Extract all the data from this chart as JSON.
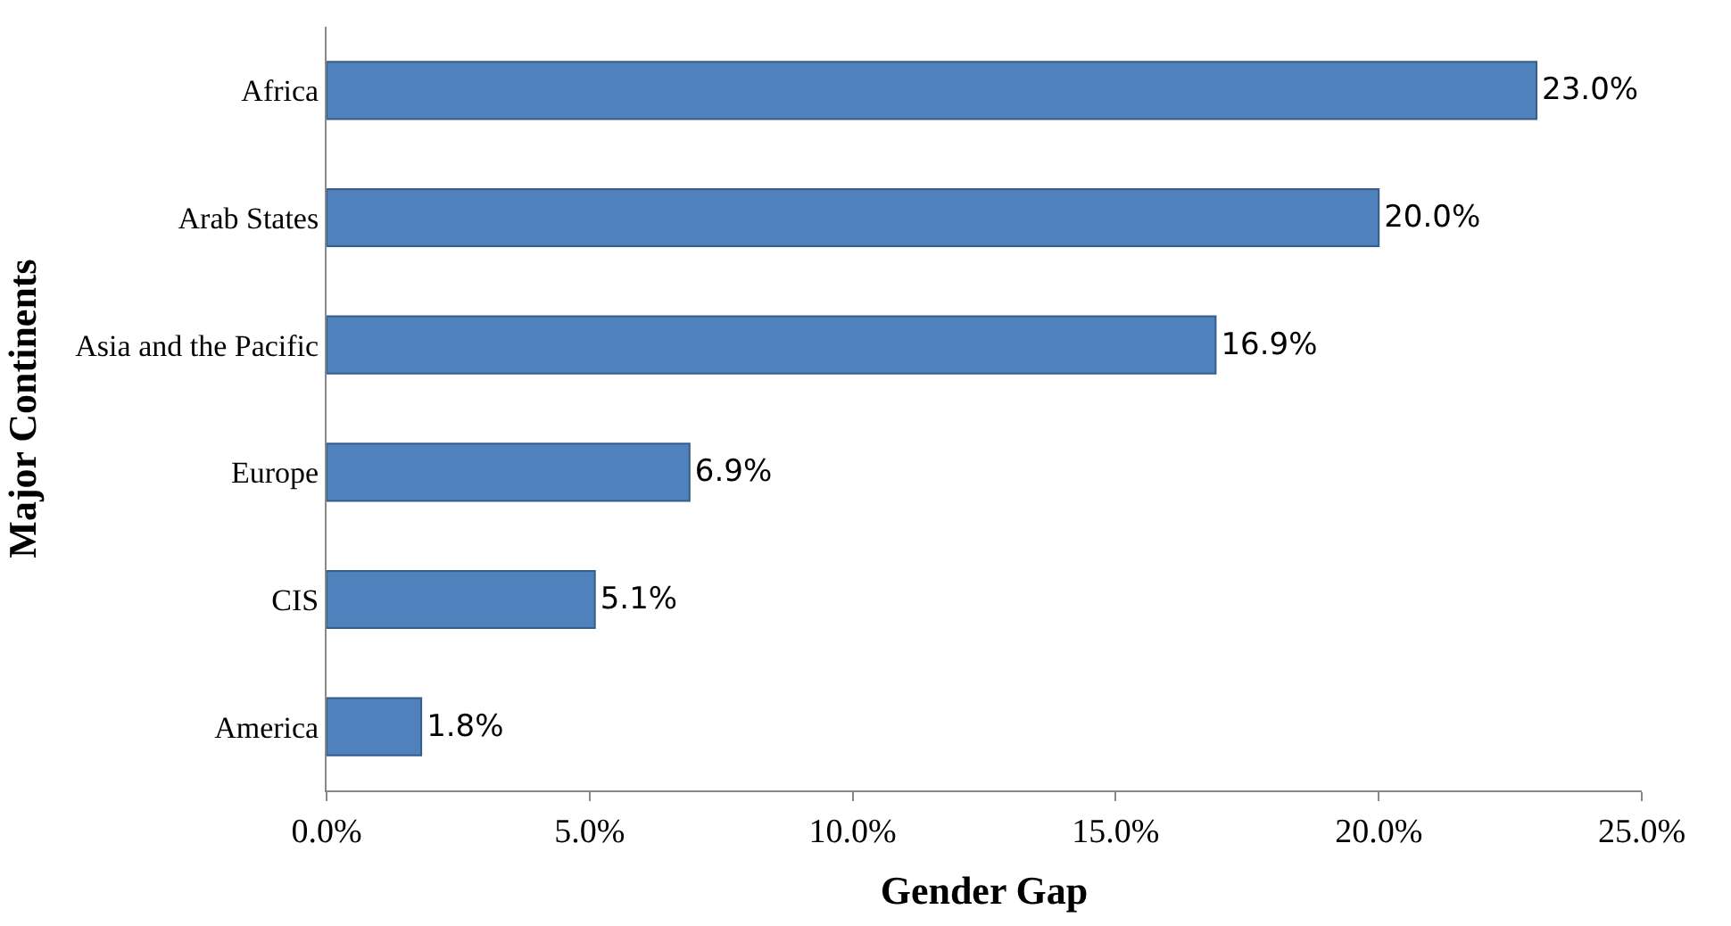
{
  "chart_data": {
    "type": "bar",
    "orientation": "horizontal",
    "xlabel": "Gender Gap",
    "ylabel": "Major Continents",
    "categories": [
      "Africa",
      "Arab States",
      "Asia and the Pacific",
      "Europe",
      "CIS",
      "America"
    ],
    "values": [
      23.0,
      20.0,
      16.9,
      6.9,
      5.1,
      1.8
    ],
    "value_labels": [
      "23.0%",
      "20.0%",
      "16.9%",
      "6.9%",
      "5.1%",
      "1.8%"
    ],
    "color": "#4f81bd",
    "xlim": [
      0,
      25
    ],
    "xticks": [
      {
        "value": 0,
        "label": "0.0%"
      },
      {
        "value": 5,
        "label": "5.0%"
      },
      {
        "value": 10,
        "label": "10.0%"
      },
      {
        "value": 15,
        "label": "15.0%"
      },
      {
        "value": 20,
        "label": "20.0%"
      },
      {
        "value": 25,
        "label": "25.0%"
      }
    ],
    "grid": false,
    "legend": false
  }
}
